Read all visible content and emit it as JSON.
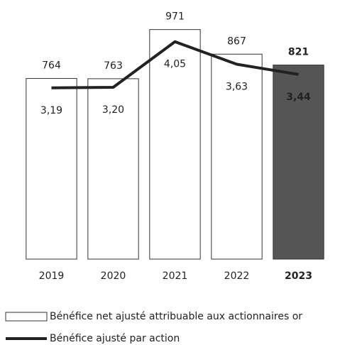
{
  "chart_data": {
    "type": "combo",
    "categories": [
      "2019",
      "2020",
      "2021",
      "2022",
      "2023"
    ],
    "ylim": [
      0,
      1090
    ],
    "y2lim": [
      0,
      4.8
    ],
    "series": [
      {
        "name": "Bénéfice net ajusté attribuable aux actionnaires or",
        "type": "bar",
        "values": [
          764,
          763,
          971,
          867,
          821
        ],
        "colors": [
          "#ffffff",
          "#ffffff",
          "#ffffff",
          "#ffffff",
          "#555555"
        ],
        "edge": "#333333"
      },
      {
        "name": "Bénéfice ajusté par action",
        "type": "line",
        "axis": "y2",
        "color": "#222222",
        "values": [
          3.19,
          3.2,
          4.05,
          3.63,
          3.44
        ],
        "value_labels": [
          "3,19",
          "3,20",
          "4,05",
          "3,63",
          "3,44"
        ]
      }
    ]
  }
}
